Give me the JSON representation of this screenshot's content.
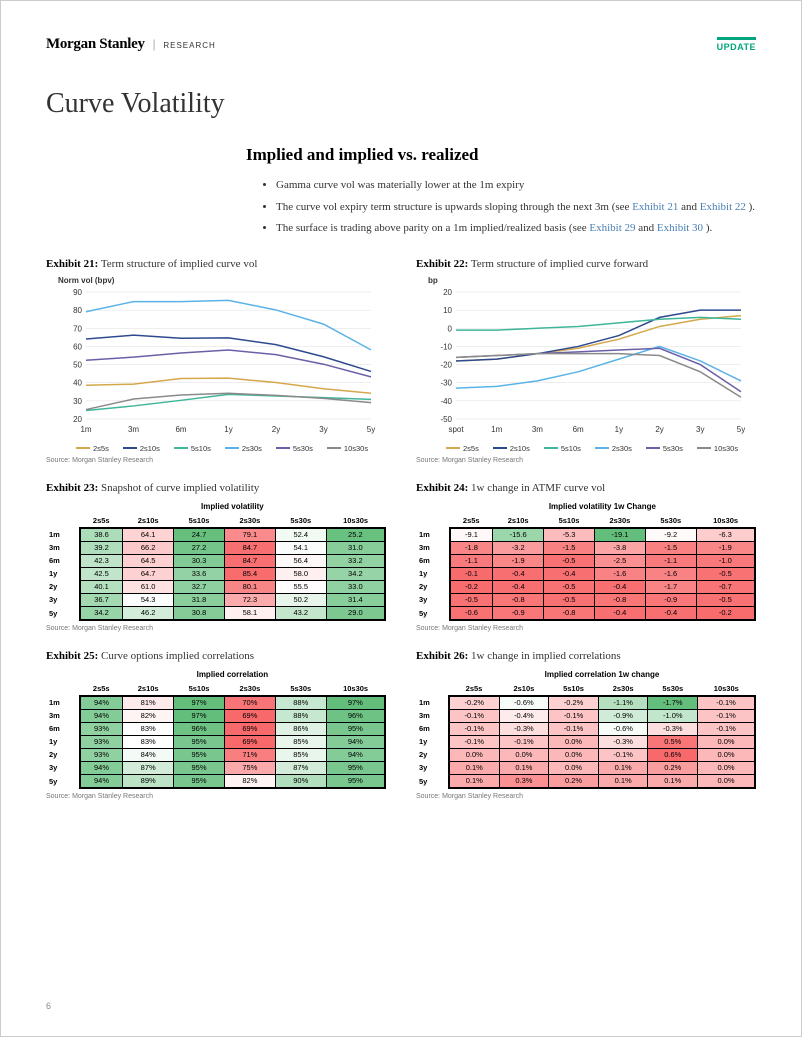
{
  "header": {
    "brand_name": "Morgan Stanley",
    "brand_sub": "RESEARCH",
    "update_label": "UPDATE"
  },
  "page_title": "Curve Volatility",
  "section_subtitle": "Implied and implied vs. realized",
  "bullets": [
    {
      "text": "Gamma curve vol was materially lower at the 1m expiry"
    },
    {
      "text": "The curve vol expiry term structure is upwards sloping through the next 3m (see ",
      "links": [
        "Exhibit 21",
        "Exhibit 22"
      ],
      "tail": " )."
    },
    {
      "text": "The surface is trading above parity on a 1m implied/realized basis (see ",
      "links": [
        "Exhibit 29",
        "Exhibit 30"
      ],
      "tail": " )."
    }
  ],
  "chart_common": {
    "x_categories": [
      "1m",
      "3m",
      "6m",
      "1y",
      "2y",
      "3y",
      "5y"
    ],
    "series_labels": [
      "2s5s",
      "2s10s",
      "5s10s",
      "2s30s",
      "5s30s",
      "10s30s"
    ],
    "series_colors": [
      "#d4a84b",
      "#2e4a8f",
      "#3fb599",
      "#5ab3e8",
      "#6b5fa8",
      "#8a8a8a"
    ],
    "source": "Source: Morgan Stanley Research"
  },
  "exhibit21": {
    "num": "Exhibit 21:",
    "title": "Term structure of implied curve vol",
    "type": "line",
    "ylabel": "Norm vol (bpv)",
    "ylim": [
      20,
      90
    ],
    "ytick_step": 10,
    "series_data": {
      "2s5s": [
        38.6,
        39.2,
        42.3,
        42.5,
        40.1,
        36.7,
        34.2
      ],
      "2s10s": [
        64.1,
        66.2,
        64.5,
        64.7,
        61.0,
        54.3,
        46.2
      ],
      "5s10s": [
        24.7,
        27.2,
        30.3,
        33.6,
        32.7,
        31.8,
        30.8
      ],
      "2s30s": [
        79.1,
        84.7,
        84.7,
        85.4,
        80.1,
        72.3,
        58.1
      ],
      "5s30s": [
        52.4,
        54.1,
        56.4,
        58.0,
        55.5,
        50.2,
        43.2
      ],
      "10s30s": [
        25.2,
        31.0,
        33.2,
        34.2,
        33.0,
        31.4,
        29.0
      ]
    }
  },
  "exhibit22": {
    "num": "Exhibit 22:",
    "title": "Term structure of implied curve forward",
    "type": "line",
    "ylabel": "bp",
    "ylim": [
      -50,
      20
    ],
    "ytick_step": 10,
    "x_categories": [
      "spot",
      "1m",
      "3m",
      "6m",
      "1y",
      "2y",
      "3y",
      "5y"
    ],
    "series_data": {
      "2s5s": [
        -18,
        -17,
        -14,
        -11,
        -6,
        1,
        5,
        7
      ],
      "2s10s": [
        -18,
        -17,
        -14,
        -10,
        -4,
        6,
        10,
        10
      ],
      "5s10s": [
        -1,
        -1,
        0,
        1,
        3,
        5,
        6,
        5
      ],
      "2s30s": [
        -33,
        -32,
        -29,
        -24,
        -17,
        -10,
        -18,
        -29
      ],
      "5s30s": [
        -16,
        -15,
        -14,
        -13,
        -12,
        -11,
        -20,
        -35
      ],
      "10s30s": [
        -16,
        -15,
        -14,
        -14,
        -14,
        -15,
        -24,
        -38
      ]
    }
  },
  "tables_common": {
    "row_labels": [
      "1m",
      "3m",
      "6m",
      "1y",
      "2y",
      "3y",
      "5y"
    ],
    "col_labels": [
      "2s5s",
      "2s10s",
      "5s10s",
      "2s30s",
      "5s30s",
      "10s30s"
    ]
  },
  "exhibit23": {
    "num": "Exhibit 23:",
    "title": "Snapshot of curve implied volatility",
    "super_header": "Implied volatility",
    "data": [
      [
        38.6,
        64.1,
        24.7,
        79.1,
        52.4,
        25.2
      ],
      [
        39.2,
        66.2,
        27.2,
        84.7,
        54.1,
        31.0
      ],
      [
        42.3,
        64.5,
        30.3,
        84.7,
        56.4,
        33.2
      ],
      [
        42.5,
        64.7,
        33.6,
        85.4,
        58.0,
        34.2
      ],
      [
        40.1,
        61.0,
        32.7,
        80.1,
        55.5,
        33.0
      ],
      [
        36.7,
        54.3,
        31.8,
        72.3,
        50.2,
        31.4
      ],
      [
        34.2,
        46.2,
        30.8,
        58.1,
        43.2,
        29.0
      ]
    ],
    "color_scale": {
      "min": 24,
      "max": 86,
      "low_color": "#63be7b",
      "mid_color": "#ffffff",
      "high_color": "#f8696b"
    },
    "format": "fixed1"
  },
  "exhibit24": {
    "num": "Exhibit 24:",
    "title": "1w change in ATMF curve vol",
    "super_header": "Implied volatility 1w Change",
    "data": [
      [
        -9.1,
        -15.6,
        -5.3,
        -19.1,
        -9.2,
        -6.3
      ],
      [
        -1.8,
        -3.2,
        -1.5,
        -3.8,
        -1.5,
        -1.9
      ],
      [
        -1.1,
        -1.9,
        -0.5,
        -2.5,
        -1.1,
        -1.0
      ],
      [
        -0.1,
        -0.4,
        -0.4,
        -1.6,
        -1.6,
        -0.5
      ],
      [
        -0.2,
        -0.4,
        -0.5,
        -0.4,
        -1.7,
        -0.7
      ],
      [
        -0.5,
        -0.8,
        -0.5,
        -0.8,
        -0.9,
        -0.5
      ],
      [
        -0.6,
        -0.9,
        -0.8,
        -0.4,
        -0.4,
        -0.2
      ]
    ],
    "color_scale": {
      "min": -19.1,
      "max": 0,
      "low_color": "#63be7b",
      "mid_color": "#ffffff",
      "high_color": "#f8696b"
    },
    "format": "fixed1"
  },
  "exhibit25": {
    "num": "Exhibit 25:",
    "title": "Curve options implied correlations",
    "super_header": "Implied correlation",
    "data": [
      [
        0.94,
        0.81,
        0.97,
        0.7,
        0.88,
        0.97
      ],
      [
        0.94,
        0.82,
        0.97,
        0.69,
        0.88,
        0.96
      ],
      [
        0.93,
        0.83,
        0.96,
        0.69,
        0.86,
        0.95
      ],
      [
        0.93,
        0.83,
        0.95,
        0.69,
        0.85,
        0.94
      ],
      [
        0.93,
        0.84,
        0.95,
        0.71,
        0.85,
        0.94
      ],
      [
        0.94,
        0.87,
        0.95,
        0.75,
        0.87,
        0.95
      ],
      [
        0.94,
        0.89,
        0.95,
        0.82,
        0.9,
        0.95
      ]
    ],
    "color_scale": {
      "min": 0.69,
      "max": 0.97,
      "low_color": "#f8696b",
      "mid_color": "#ffffff",
      "high_color": "#63be7b"
    },
    "format": "percent0"
  },
  "exhibit26": {
    "num": "Exhibit 26:",
    "title": "1w change in implied correlations",
    "super_header": "Implied correlation 1w change",
    "data": [
      [
        -0.002,
        -0.006,
        -0.002,
        -0.011,
        -0.017,
        -0.001
      ],
      [
        -0.001,
        -0.004,
        -0.001,
        -0.009,
        -0.01,
        -0.001
      ],
      [
        -0.001,
        -0.003,
        -0.001,
        -0.006,
        -0.003,
        -0.001
      ],
      [
        -0.001,
        -0.001,
        0.0,
        -0.003,
        0.005,
        0.0
      ],
      [
        0.0,
        0.0,
        0.0,
        -0.001,
        0.006,
        0.0
      ],
      [
        0.001,
        0.001,
        0.0,
        0.001,
        0.002,
        0.0
      ],
      [
        0.001,
        0.003,
        0.002,
        0.001,
        0.001,
        0.0
      ]
    ],
    "color_scale": {
      "min": -0.017,
      "max": 0.006,
      "low_color": "#63be7b",
      "mid_color": "#ffffff",
      "high_color": "#f8696b"
    },
    "format": "percent1"
  },
  "page_number": "6"
}
